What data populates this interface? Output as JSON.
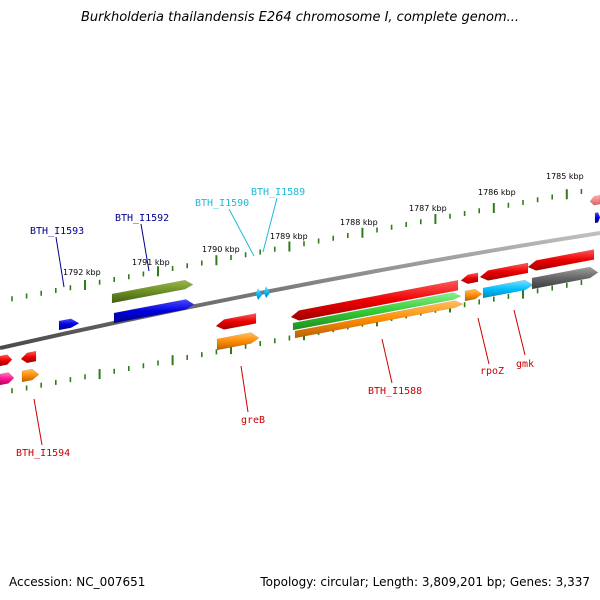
{
  "title": "Burkholderia thailandensis E264 chromosome I, complete genom...",
  "footer": {
    "accession": "Accession: NC_007651",
    "topology": "Topology: circular; Length: 3,809,201 bp; Genes: 3,337"
  },
  "kbp_labels": [
    "1792 kbp",
    "1791 kbp",
    "1790 kbp",
    "1789 kbp",
    "1788 kbp",
    "1787 kbp",
    "1786 kbp",
    "1785 kbp"
  ],
  "gene_labels": [
    {
      "name": "BTH_I1593",
      "color": "#00008b"
    },
    {
      "name": "BTH_I1592",
      "color": "#00008b"
    },
    {
      "name": "BTH_I1590",
      "color": "#22b8d8"
    },
    {
      "name": "BTH_I1589",
      "color": "#22b8d8"
    },
    {
      "name": "BTH_I1594",
      "color": "#cc0000"
    },
    {
      "name": "greB",
      "color": "#cc0000"
    },
    {
      "name": "BTH_I1588",
      "color": "#cc0000"
    },
    {
      "name": "rpoZ",
      "color": "#cc0000"
    },
    {
      "name": "gmk",
      "color": "#cc0000"
    }
  ],
  "colors": {
    "backbone": "#7a7a7a",
    "ticks": "#2e7d1a",
    "red": "#ee0000",
    "orange": "#ff8c00",
    "blue": "#0000dd",
    "olive": "#6b8e23",
    "green": "#33cc33",
    "cyan": "#00bfff",
    "gray": "#666666",
    "pink": "#ff1493"
  }
}
